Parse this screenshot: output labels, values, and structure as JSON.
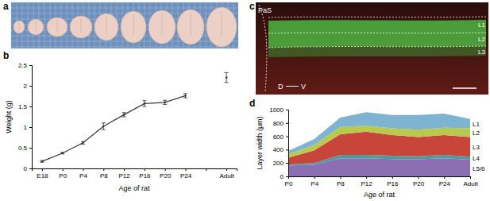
{
  "panel_labels": [
    "a",
    "b",
    "c",
    "d"
  ],
  "image_c": {
    "region_label": "PaS",
    "orientation_labels": [
      "D",
      "V"
    ],
    "layer_labels": [
      "L1",
      "L2",
      "L3"
    ]
  },
  "chart_data": [
    {
      "type": "line",
      "x_label": "Age of rat",
      "y_label": "Weight (g)",
      "categories": [
        "E18",
        "P0",
        "P4",
        "P8",
        "P12",
        "P16",
        "P20",
        "P24",
        null,
        "Adult"
      ],
      "values": [
        0.17,
        0.37,
        0.62,
        1.02,
        1.3,
        1.57,
        1.6,
        1.76,
        null,
        2.2
      ],
      "errors": [
        0.02,
        0.02,
        0.03,
        0.08,
        0.05,
        0.07,
        0.05,
        0.05,
        null,
        0.12
      ],
      "color": "#3a3a3a",
      "marker": "circle",
      "ylim": [
        0,
        2.5
      ],
      "yticks": [
        0,
        0.5,
        1,
        1.5,
        2,
        2.5
      ]
    },
    {
      "type": "area",
      "stacked": true,
      "x_label": "Age of rat",
      "y_label": "Layer width (μm)",
      "categories": [
        "P0",
        "P4",
        "P8",
        "P12",
        "P16",
        "P20",
        "P24",
        "Adult"
      ],
      "series": [
        {
          "name": "L5/6",
          "color": "#8c6fb3",
          "values": [
            160,
            175,
            270,
            270,
            260,
            255,
            270,
            250
          ]
        },
        {
          "name": "L4",
          "color": "#4b9c9b",
          "values": [
            20,
            25,
            50,
            50,
            50,
            45,
            50,
            45
          ]
        },
        {
          "name": "L3",
          "color": "#c8453b",
          "values": [
            100,
            190,
            310,
            350,
            310,
            290,
            300,
            295
          ]
        },
        {
          "name": "L2",
          "color": "#b9c94d",
          "values": [
            50,
            80,
            110,
            90,
            100,
            110,
            110,
            130
          ]
        },
        {
          "name": "L1",
          "color": "#7eb3d1",
          "values": [
            50,
            90,
            140,
            200,
            200,
            220,
            210,
            140
          ]
        }
      ],
      "ylim": [
        0,
        1000
      ],
      "yticks": [
        0,
        200,
        400,
        600,
        800,
        1000
      ]
    }
  ]
}
